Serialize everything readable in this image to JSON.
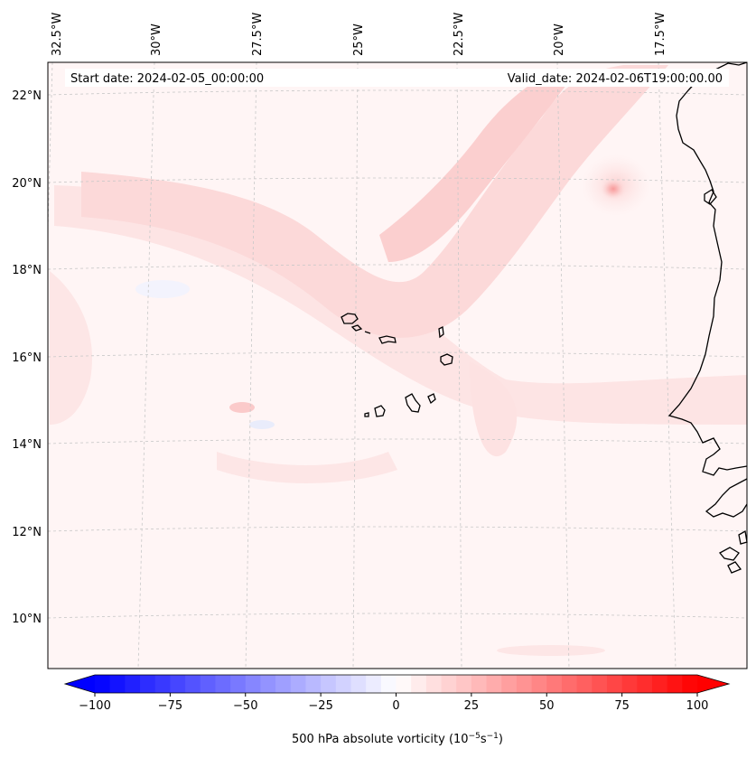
{
  "map": {
    "start_date": "Start date: 2024-02-05_00:00:00",
    "valid_date": "Valid_date: 2024-02-06T19:00:00.00",
    "lon_labels": [
      "32.5°W",
      "30°W",
      "27.5°W",
      "25°W",
      "22.5°W",
      "20°W",
      "17.5°W"
    ],
    "lat_labels": [
      "22°N",
      "20°N",
      "18°N",
      "16°N",
      "14°N",
      "12°N",
      "10°N"
    ],
    "field": "500 hPa absolute vorticity",
    "land_outline_color": "#000000",
    "grid_color": "#bbbbbb"
  },
  "colorbar": {
    "label_main": "500 hPa absolute vorticity (10",
    "label_exp1": "−5",
    "label_mid": "s",
    "label_exp2": "−1",
    "label_end": ")",
    "ticks": [
      "−100",
      "−75",
      "−50",
      "−25",
      "0",
      "25",
      "50",
      "75",
      "100"
    ],
    "range": [
      -100,
      100
    ],
    "negative_color": "#0000ff",
    "zero_color": "#ffffff",
    "positive_color": "#ff0000",
    "extend": "both"
  }
}
